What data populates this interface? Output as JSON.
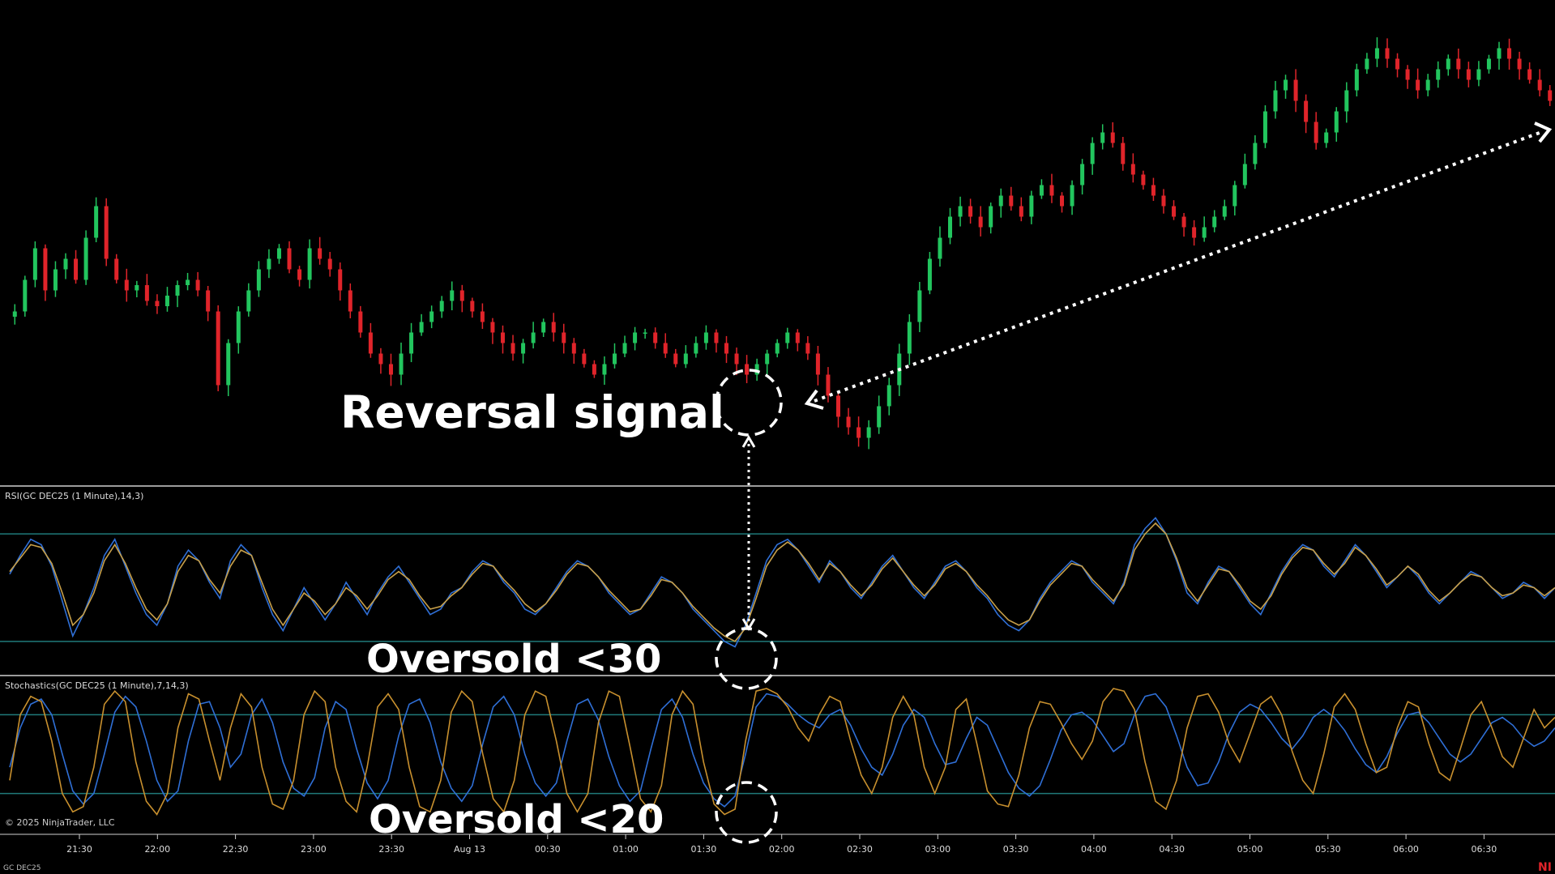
{
  "instrument": "GC DEC25",
  "copyright": "© 2025 NinjaTrader, LLC",
  "brand_partial": "NI",
  "colors": {
    "background": "#000000",
    "candle_up": "#22c55e",
    "candle_down": "#e0242a",
    "rsi_line": "#2f6fd6",
    "rsi_avg": "#c8a04a",
    "stoch_d": "#2f6fd6",
    "stoch_k": "#c8902e",
    "level_line": "#1f7a7a",
    "pane_divider": "#d0d0d0",
    "annotation": "#ffffff"
  },
  "annotations": {
    "reversal": "Reversal signal",
    "rsi_oversold": "Oversold <30",
    "stoch_oversold": "Oversold <20"
  },
  "chart_data": [
    {
      "type": "candlestick",
      "pane": "price",
      "trend": "uptrend after reversal",
      "x": [
        "21:30",
        "22:00",
        "22:30",
        "23:00",
        "23:30",
        "Aug 13",
        "00:30",
        "01:00",
        "01:30",
        "02:00",
        "02:30",
        "03:00",
        "03:30",
        "04:00",
        "04:30",
        "05:00",
        "05:30",
        "06:00",
        "06:30"
      ],
      "closes": [
        52,
        58,
        64,
        56,
        60,
        62,
        58,
        66,
        72,
        62,
        58,
        56,
        57,
        54,
        53,
        55,
        57,
        58,
        56,
        52,
        38,
        46,
        52,
        56,
        60,
        62,
        64,
        60,
        58,
        64,
        62,
        60,
        56,
        52,
        48,
        44,
        42,
        40,
        44,
        48,
        50,
        52,
        54,
        56,
        54,
        52,
        50,
        48,
        46,
        44,
        46,
        48,
        50,
        48,
        46,
        44,
        42,
        40,
        42,
        44,
        46,
        48,
        48,
        46,
        44,
        42,
        44,
        46,
        48,
        46,
        44,
        42,
        40,
        42,
        44,
        46,
        48,
        46,
        44,
        40,
        36,
        32,
        30,
        28,
        30,
        34,
        38,
        44,
        50,
        56,
        62,
        66,
        70,
        72,
        70,
        68,
        72,
        74,
        72,
        70,
        74,
        76,
        74,
        72,
        76,
        80,
        84,
        86,
        84,
        80,
        78,
        76,
        74,
        72,
        70,
        68,
        66,
        68,
        70,
        72,
        76,
        80,
        84,
        90,
        94,
        96,
        92,
        88,
        84,
        86,
        90,
        94,
        98,
        100,
        102,
        100,
        98,
        96,
        94,
        96,
        98,
        100,
        98,
        96,
        98,
        100,
        102,
        100,
        98,
        96,
        94,
        92
      ]
    },
    {
      "type": "line",
      "pane": "indicator",
      "title": "RSI(GC DEC25 (1 Minute),14,3)",
      "levels": [
        70,
        30
      ],
      "ylim": [
        20,
        80
      ],
      "series": [
        {
          "values": [
            55,
            62,
            68,
            66,
            58,
            45,
            32,
            40,
            50,
            62,
            68,
            58,
            48,
            40,
            36,
            44,
            58,
            64,
            60,
            52,
            46,
            60,
            66,
            62,
            50,
            40,
            34,
            42,
            50,
            44,
            38,
            44,
            52,
            46,
            40,
            48,
            54,
            58,
            52,
            46,
            40,
            42,
            48,
            50,
            56,
            60,
            58,
            52,
            48,
            42,
            40,
            44,
            50,
            56,
            60,
            58,
            54,
            48,
            44,
            40,
            42,
            48,
            54,
            52,
            48,
            42,
            38,
            34,
            30,
            28,
            36,
            48,
            60,
            66,
            68,
            64,
            58,
            52,
            60,
            56,
            50,
            46,
            52,
            58,
            62,
            56,
            50,
            46,
            52,
            58,
            60,
            56,
            50,
            46,
            40,
            36,
            34,
            38,
            46,
            52,
            56,
            60,
            58,
            52,
            48,
            44,
            52,
            66,
            72,
            76,
            70,
            60,
            48,
            44,
            52,
            58,
            56,
            50,
            44,
            40,
            48,
            56,
            62,
            66,
            64,
            58,
            54,
            60,
            66,
            62,
            56,
            50,
            54,
            58,
            54,
            48,
            44,
            48,
            52,
            56,
            54,
            50,
            46,
            48,
            52,
            50,
            46,
            50
          ]
        },
        {
          "values": [
            56,
            61,
            66,
            65,
            59,
            48,
            36,
            40,
            48,
            60,
            66,
            59,
            50,
            42,
            38,
            44,
            56,
            62,
            60,
            53,
            48,
            58,
            64,
            62,
            52,
            42,
            36,
            42,
            48,
            45,
            40,
            44,
            50,
            47,
            42,
            47,
            53,
            56,
            53,
            47,
            42,
            43,
            47,
            50,
            55,
            59,
            58,
            53,
            49,
            44,
            41,
            44,
            49,
            55,
            59,
            58,
            54,
            49,
            45,
            41,
            42,
            47,
            53,
            52,
            48,
            43,
            39,
            35,
            32,
            30,
            35,
            46,
            58,
            64,
            67,
            64,
            59,
            53,
            59,
            56,
            51,
            47,
            51,
            57,
            61,
            56,
            51,
            47,
            51,
            57,
            59,
            56,
            51,
            47,
            42,
            38,
            36,
            38,
            45,
            51,
            55,
            59,
            58,
            53,
            49,
            45,
            51,
            64,
            70,
            74,
            70,
            61,
            50,
            45,
            51,
            57,
            56,
            51,
            45,
            42,
            47,
            55,
            61,
            65,
            64,
            59,
            55,
            59,
            65,
            62,
            57,
            51,
            54,
            58,
            55,
            49,
            45,
            48,
            52,
            55,
            54,
            50,
            47,
            48,
            51,
            50,
            47,
            50
          ]
        }
      ]
    },
    {
      "type": "line",
      "pane": "indicator",
      "title": "Stochastics(GC DEC25 (1 Minute),7,14,3)",
      "levels": [
        80,
        20
      ],
      "ylim": [
        0,
        100
      ],
      "series": [
        {
          "values": [
            40,
            70,
            88,
            92,
            80,
            50,
            22,
            12,
            20,
            50,
            82,
            94,
            86,
            60,
            30,
            14,
            22,
            60,
            88,
            90,
            70,
            40,
            50,
            80,
            92,
            74,
            44,
            24,
            18,
            32,
            70,
            90,
            84,
            54,
            28,
            16,
            30,
            64,
            88,
            92,
            74,
            44,
            24,
            14,
            26,
            58,
            86,
            94,
            80,
            50,
            28,
            18,
            28,
            60,
            88,
            92,
            76,
            48,
            26,
            14,
            22,
            54,
            84,
            92,
            78,
            50,
            28,
            16,
            10,
            18,
            50,
            86,
            96,
            94,
            88,
            80,
            74,
            70,
            80,
            84,
            72,
            54,
            40,
            34,
            50,
            72,
            84,
            78,
            58,
            42,
            44,
            62,
            78,
            72,
            54,
            36,
            24,
            18,
            26,
            46,
            68,
            80,
            82,
            76,
            64,
            52,
            58,
            80,
            94,
            96,
            86,
            64,
            40,
            26,
            28,
            44,
            66,
            82,
            88,
            84,
            74,
            62,
            54,
            64,
            78,
            84,
            78,
            68,
            54,
            42,
            36,
            48,
            66,
            80,
            82,
            74,
            62,
            50,
            44,
            50,
            62,
            74,
            78,
            72,
            62,
            56,
            60,
            70
          ]
        },
        {
          "values": [
            30,
            80,
            94,
            90,
            60,
            20,
            6,
            10,
            40,
            88,
            98,
            90,
            44,
            14,
            4,
            20,
            70,
            96,
            92,
            60,
            30,
            70,
            96,
            86,
            40,
            12,
            8,
            30,
            80,
            98,
            90,
            40,
            14,
            6,
            40,
            86,
            96,
            84,
            40,
            10,
            6,
            30,
            82,
            98,
            90,
            50,
            16,
            6,
            30,
            80,
            98,
            94,
            60,
            20,
            6,
            20,
            74,
            98,
            94,
            56,
            16,
            6,
            26,
            80,
            98,
            88,
            44,
            12,
            4,
            8,
            60,
            98,
            100,
            96,
            86,
            70,
            60,
            80,
            94,
            90,
            60,
            34,
            20,
            40,
            78,
            94,
            80,
            40,
            20,
            40,
            84,
            92,
            58,
            22,
            12,
            10,
            34,
            70,
            90,
            88,
            74,
            58,
            46,
            60,
            90,
            100,
            98,
            84,
            44,
            14,
            8,
            30,
            70,
            94,
            96,
            82,
            58,
            44,
            66,
            88,
            94,
            80,
            52,
            30,
            20,
            50,
            86,
            96,
            84,
            58,
            36,
            40,
            70,
            90,
            86,
            58,
            36,
            30,
            54,
            80,
            90,
            70,
            48,
            40,
            62,
            84,
            70,
            78
          ]
        }
      ]
    }
  ]
}
